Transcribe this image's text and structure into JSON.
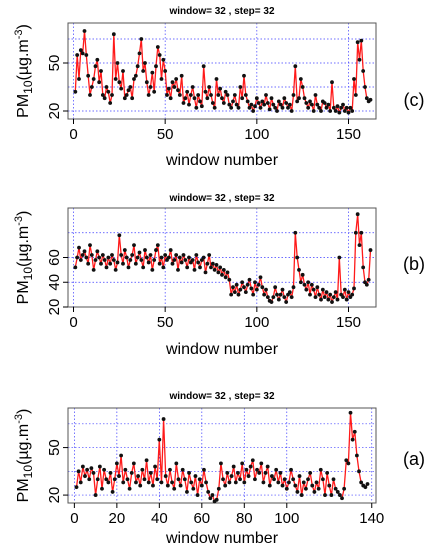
{
  "chart_data": [
    {
      "type": "line",
      "panel_label": "(c)",
      "title": "window= 32 , step= 32",
      "xlabel": "window number",
      "ylabel_prefix": "PM",
      "ylabel_sub": "10",
      "ylabel_unit": "(µg.m",
      "ylabel_sup": "-3",
      "ylabel_close": ")",
      "xlim": [
        -3,
        165
      ],
      "ylim": [
        15,
        75
      ],
      "x_ticks": [
        "0",
        "50",
        "100",
        "150"
      ],
      "y_ticks": [
        "20",
        "50"
      ],
      "x_tick_values": [
        0,
        50,
        100,
        150
      ],
      "y_tick_values": [
        20,
        50
      ],
      "x_grid": [
        0,
        50,
        100,
        150
      ],
      "y_grid": [
        20,
        35,
        50,
        65
      ],
      "grid": true,
      "colors": {
        "line": "#ff1a1a",
        "points": "#111111",
        "grid": "#3c3cff"
      },
      "x": [
        1,
        2,
        3,
        4,
        5,
        6,
        7,
        8,
        9,
        10,
        11,
        12,
        13,
        14,
        15,
        16,
        17,
        18,
        19,
        20,
        21,
        22,
        23,
        24,
        25,
        26,
        27,
        28,
        29,
        30,
        31,
        32,
        33,
        34,
        35,
        36,
        37,
        38,
        39,
        40,
        41,
        42,
        43,
        44,
        45,
        46,
        47,
        48,
        49,
        50,
        51,
        52,
        53,
        54,
        55,
        56,
        57,
        58,
        59,
        60,
        61,
        62,
        63,
        64,
        65,
        66,
        67,
        68,
        69,
        70,
        71,
        72,
        73,
        74,
        75,
        76,
        77,
        78,
        79,
        80,
        81,
        82,
        83,
        84,
        85,
        86,
        87,
        88,
        89,
        90,
        91,
        92,
        93,
        94,
        95,
        96,
        97,
        98,
        99,
        100,
        101,
        102,
        103,
        104,
        105,
        106,
        107,
        108,
        109,
        110,
        111,
        112,
        113,
        114,
        115,
        116,
        117,
        118,
        119,
        120,
        121,
        122,
        123,
        124,
        125,
        126,
        127,
        128,
        129,
        130,
        131,
        132,
        133,
        134,
        135,
        136,
        137,
        138,
        139,
        140,
        141,
        142,
        143,
        144,
        145,
        146,
        147,
        148,
        149,
        150,
        151,
        152,
        153,
        154,
        155,
        156,
        157,
        158,
        159,
        160,
        161,
        162
      ],
      "y": [
        32,
        55,
        40,
        58,
        56,
        70,
        55,
        42,
        30,
        35,
        40,
        48,
        52,
        38,
        45,
        30,
        28,
        35,
        32,
        25,
        30,
        68,
        40,
        50,
        38,
        34,
        45,
        28,
        30,
        33,
        35,
        28,
        40,
        42,
        48,
        56,
        65,
        45,
        50,
        38,
        30,
        35,
        44,
        32,
        48,
        60,
        55,
        40,
        52,
        45,
        30,
        34,
        28,
        38,
        35,
        40,
        33,
        30,
        42,
        25,
        28,
        32,
        24,
        30,
        35,
        28,
        22,
        30,
        26,
        23,
        48,
        32,
        28,
        35,
        30,
        25,
        22,
        40,
        30,
        34,
        28,
        25,
        32,
        30,
        24,
        22,
        26,
        30,
        24,
        22,
        35,
        28,
        42,
        30,
        26,
        22,
        24,
        20,
        23,
        28,
        25,
        22,
        26,
        24,
        30,
        25,
        21,
        28,
        24,
        22,
        20,
        26,
        24,
        22,
        28,
        25,
        22,
        24,
        20,
        30,
        48,
        26,
        28,
        40,
        35,
        28,
        25,
        22,
        26,
        24,
        20,
        30,
        24,
        22,
        20,
        26,
        25,
        22,
        24,
        20,
        38,
        22,
        20,
        23,
        19,
        22,
        24,
        20,
        22,
        19,
        22,
        20,
        40,
        30,
        63,
        52,
        64,
        45,
        35,
        28,
        26,
        27
      ]
    },
    {
      "type": "line",
      "panel_label": "(b)",
      "title": "window= 32 , step= 32",
      "xlabel": "window number",
      "ylabel_prefix": "PM",
      "ylabel_sub": "10",
      "ylabel_unit": "(µg.m",
      "ylabel_sup": "-3",
      "ylabel_close": ")",
      "xlim": [
        -3,
        165
      ],
      "ylim": [
        20,
        100
      ],
      "x_ticks": [
        "0",
        "50",
        "100",
        "150"
      ],
      "y_ticks": [
        "20",
        "40",
        "60"
      ],
      "x_tick_values": [
        0,
        50,
        100,
        150
      ],
      "y_tick_values": [
        20,
        40,
        60
      ],
      "x_grid": [
        0,
        50,
        100,
        150
      ],
      "y_grid": [
        20,
        40,
        60,
        80
      ],
      "grid": true,
      "colors": {
        "line": "#ff1a1a",
        "points": "#111111",
        "grid": "#3c3cff"
      },
      "x": [
        1,
        2,
        3,
        4,
        5,
        6,
        7,
        8,
        9,
        10,
        11,
        12,
        13,
        14,
        15,
        16,
        17,
        18,
        19,
        20,
        21,
        22,
        23,
        24,
        25,
        26,
        27,
        28,
        29,
        30,
        31,
        32,
        33,
        34,
        35,
        36,
        37,
        38,
        39,
        40,
        41,
        42,
        43,
        44,
        45,
        46,
        47,
        48,
        49,
        50,
        51,
        52,
        53,
        54,
        55,
        56,
        57,
        58,
        59,
        60,
        61,
        62,
        63,
        64,
        65,
        66,
        67,
        68,
        69,
        70,
        71,
        72,
        73,
        74,
        75,
        76,
        77,
        78,
        79,
        80,
        81,
        82,
        83,
        84,
        85,
        86,
        87,
        88,
        89,
        90,
        91,
        92,
        93,
        94,
        95,
        96,
        97,
        98,
        99,
        100,
        101,
        102,
        103,
        104,
        105,
        106,
        107,
        108,
        109,
        110,
        111,
        112,
        113,
        114,
        115,
        116,
        117,
        118,
        119,
        120,
        121,
        122,
        123,
        124,
        125,
        126,
        127,
        128,
        129,
        130,
        131,
        132,
        133,
        134,
        135,
        136,
        137,
        138,
        139,
        140,
        141,
        142,
        143,
        144,
        145,
        146,
        147,
        148,
        149,
        150,
        151,
        152,
        153,
        154,
        155,
        156,
        157,
        158,
        159,
        160,
        161,
        162
      ],
      "y": [
        52,
        60,
        68,
        58,
        62,
        65,
        60,
        55,
        70,
        62,
        50,
        58,
        65,
        60,
        55,
        62,
        58,
        52,
        60,
        55,
        62,
        58,
        50,
        56,
        78,
        62,
        55,
        66,
        60,
        52,
        58,
        62,
        70,
        55,
        60,
        64,
        58,
        52,
        66,
        60,
        56,
        62,
        50,
        58,
        66,
        70,
        55,
        60,
        52,
        62,
        58,
        60,
        66,
        55,
        58,
        62,
        50,
        60,
        56,
        62,
        58,
        52,
        60,
        56,
        58,
        50,
        62,
        56,
        52,
        58,
        60,
        48,
        55,
        62,
        52,
        55,
        50,
        54,
        48,
        52,
        46,
        50,
        44,
        48,
        42,
        30,
        36,
        32,
        38,
        30,
        34,
        40,
        36,
        32,
        38,
        42,
        35,
        30,
        40,
        34,
        38,
        44,
        36,
        30,
        34,
        28,
        25,
        24,
        28,
        36,
        30,
        26,
        30,
        34,
        28,
        24,
        30,
        32,
        28,
        36,
        80,
        60,
        50,
        40,
        46,
        38,
        34,
        40,
        30,
        38,
        34,
        28,
        36,
        30,
        26,
        34,
        28,
        32,
        26,
        30,
        24,
        28,
        32,
        26,
        60,
        30,
        28,
        34,
        26,
        32,
        28,
        30,
        35,
        80,
        95,
        70,
        80,
        52,
        40,
        38,
        42,
        66
      ]
    },
    {
      "type": "line",
      "panel_label": "(a)",
      "title": "window= 32 , step= 32",
      "xlabel": "window number",
      "ylabel_prefix": "PM",
      "ylabel_sub": "10",
      "ylabel_unit": "(µg.m",
      "ylabel_sup": "-3",
      "ylabel_close": ")",
      "xlim": [
        -3,
        142
      ],
      "ylim": [
        15,
        75
      ],
      "x_ticks": [
        "0",
        "20",
        "40",
        "60",
        "80",
        "100",
        "140"
      ],
      "y_ticks": [
        "20",
        "50"
      ],
      "x_tick_values": [
        0,
        20,
        40,
        60,
        80,
        100,
        140
      ],
      "y_tick_values": [
        20,
        50
      ],
      "x_grid": [
        0,
        20,
        40,
        60,
        80,
        100,
        140
      ],
      "y_grid": [
        20,
        35,
        50,
        65
      ],
      "grid": true,
      "colors": {
        "line": "#ff1a1a",
        "points": "#111111",
        "grid": "#3c3cff"
      },
      "x": [
        1,
        2,
        3,
        4,
        5,
        6,
        7,
        8,
        9,
        10,
        11,
        12,
        13,
        14,
        15,
        16,
        17,
        18,
        19,
        20,
        21,
        22,
        23,
        24,
        25,
        26,
        27,
        28,
        29,
        30,
        31,
        32,
        33,
        34,
        35,
        36,
        37,
        38,
        39,
        40,
        41,
        42,
        43,
        44,
        45,
        46,
        47,
        48,
        49,
        50,
        51,
        52,
        53,
        54,
        55,
        56,
        57,
        58,
        59,
        60,
        61,
        62,
        63,
        64,
        65,
        66,
        67,
        68,
        69,
        70,
        71,
        72,
        73,
        74,
        75,
        76,
        77,
        78,
        79,
        80,
        81,
        82,
        83,
        84,
        85,
        86,
        87,
        88,
        89,
        90,
        91,
        92,
        93,
        94,
        95,
        96,
        97,
        98,
        99,
        100,
        101,
        102,
        103,
        104,
        105,
        106,
        107,
        108,
        109,
        110,
        111,
        112,
        113,
        114,
        115,
        116,
        117,
        118,
        119,
        120,
        121,
        122,
        123,
        124,
        125,
        126,
        127,
        128,
        129,
        130,
        131,
        132,
        133,
        134,
        135,
        136,
        137,
        138
      ],
      "y": [
        25,
        35,
        28,
        38,
        32,
        36,
        30,
        37,
        34,
        20,
        30,
        38,
        24,
        36,
        30,
        28,
        34,
        22,
        30,
        40,
        32,
        45,
        28,
        36,
        30,
        24,
        34,
        40,
        28,
        32,
        26,
        36,
        30,
        42,
        28,
        34,
        26,
        38,
        30,
        55,
        28,
        68,
        32,
        26,
        36,
        28,
        24,
        40,
        30,
        26,
        36,
        30,
        22,
        34,
        28,
        24,
        32,
        20,
        30,
        26,
        36,
        28,
        22,
        18,
        20,
        16,
        17,
        24,
        40,
        30,
        26,
        34,
        28,
        32,
        38,
        28,
        34,
        30,
        40,
        28,
        36,
        32,
        38,
        42,
        30,
        36,
        34,
        40,
        28,
        34,
        38,
        26,
        32,
        30,
        36,
        28,
        34,
        26,
        30,
        24,
        28,
        36,
        30,
        26,
        22,
        32,
        20,
        28,
        24,
        30,
        34,
        26,
        22,
        28,
        24,
        36,
        30,
        20,
        34,
        26,
        20,
        30,
        24,
        22,
        20,
        18,
        24,
        42,
        40,
        72,
        55,
        60,
        45,
        35,
        28,
        26,
        25,
        27
      ]
    }
  ]
}
